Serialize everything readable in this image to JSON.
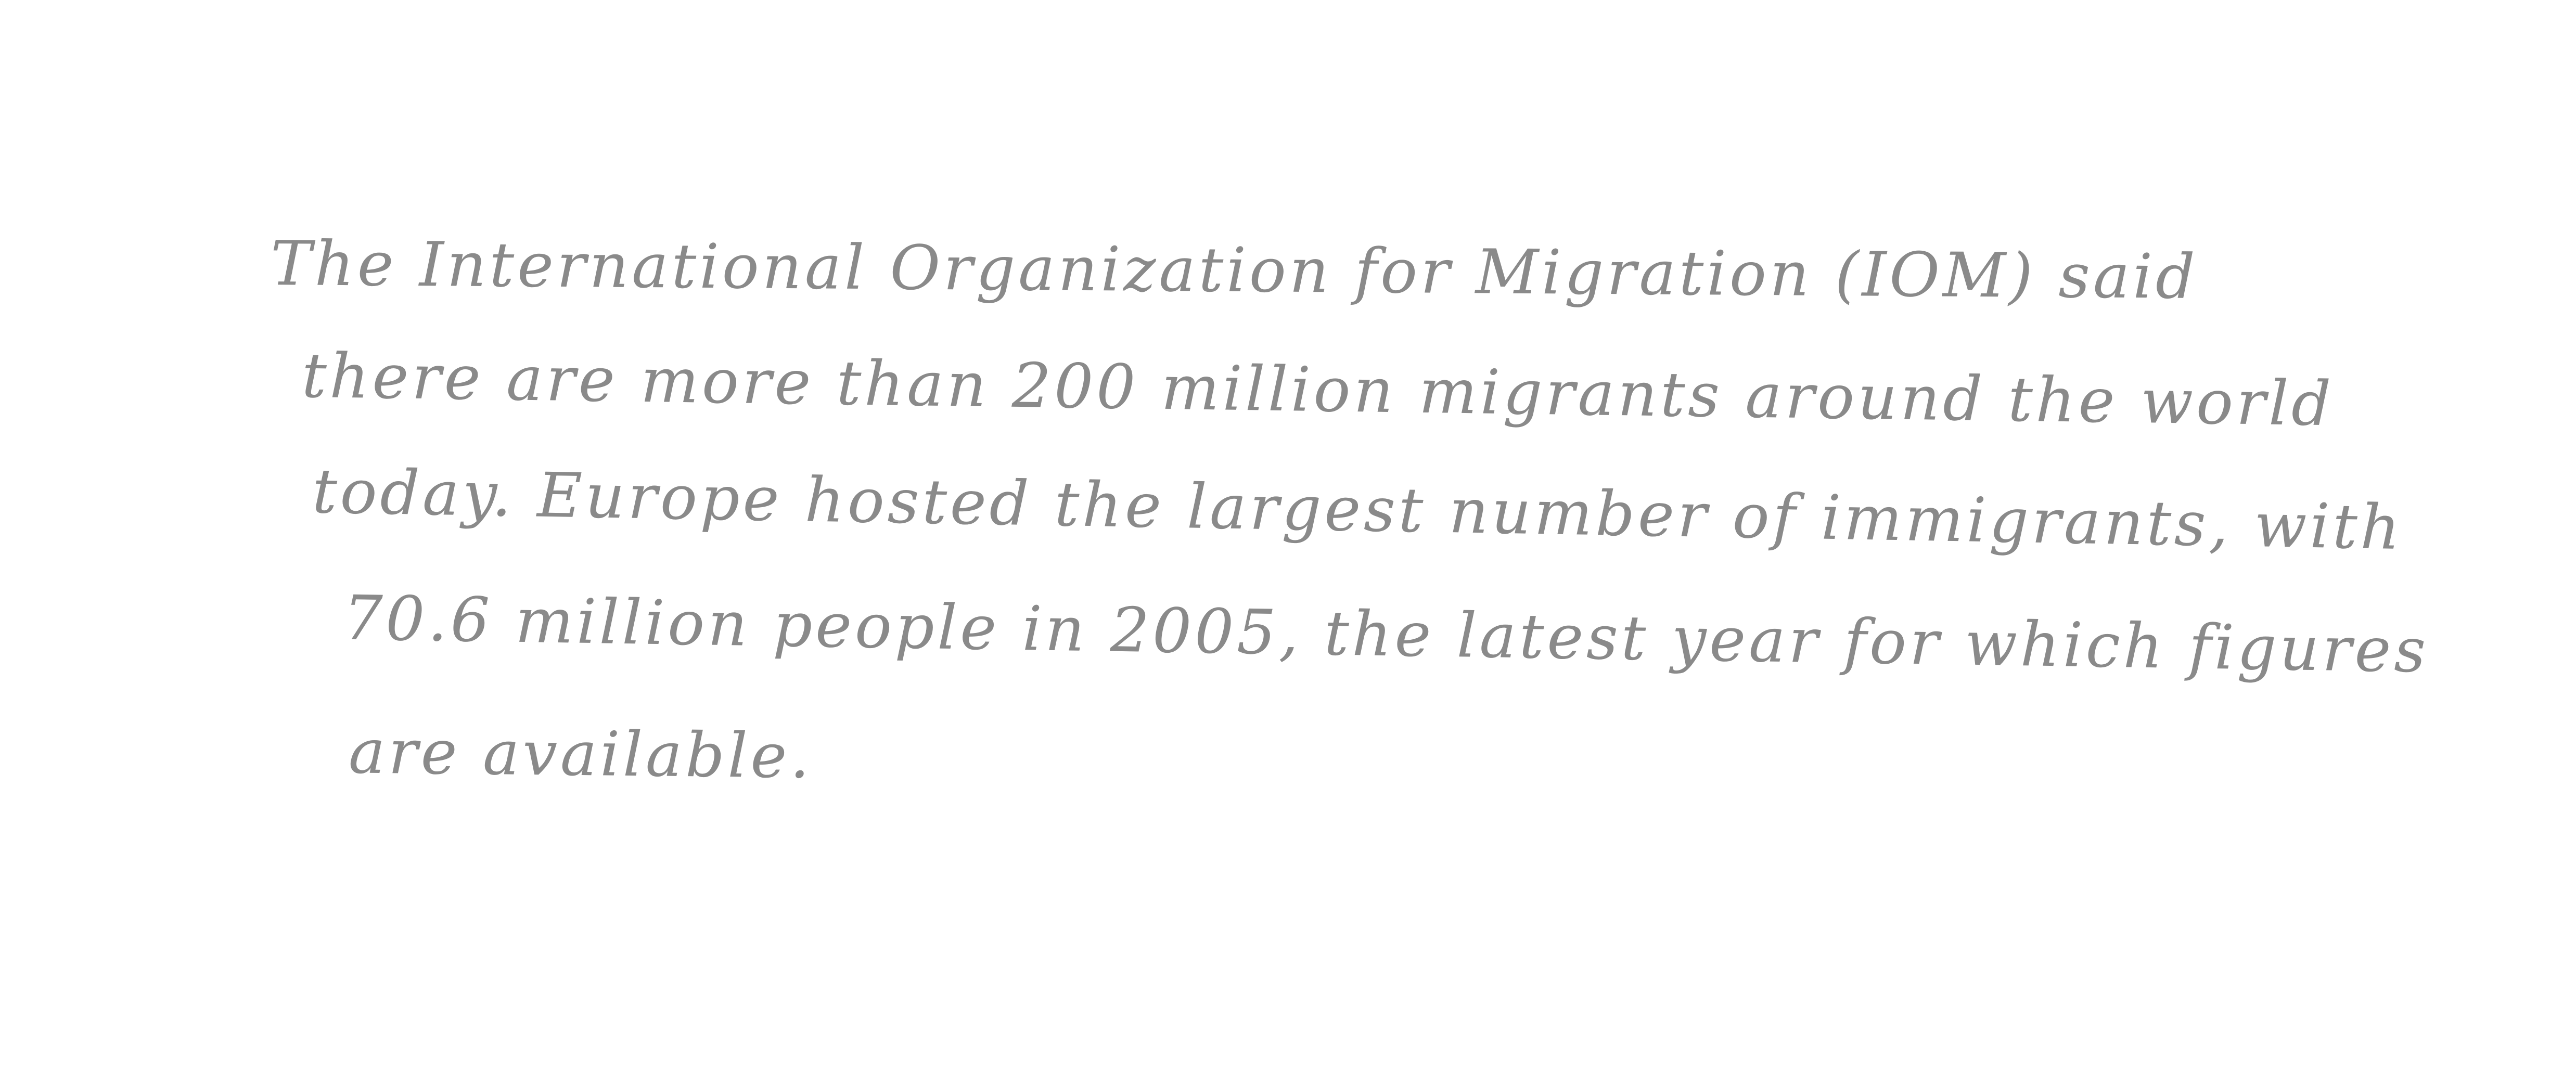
{
  "document": {
    "lines": [
      "The International Organization for Migration (IOM) said",
      "there are more than 200 million migrants around the world",
      "today. Europe hosted the largest number of immigrants, with",
      "70.6 million people in 2005, the latest year for which figures",
      "are available."
    ],
    "ink_color": "#8a8a8a",
    "paper_color": "#ffffff"
  }
}
